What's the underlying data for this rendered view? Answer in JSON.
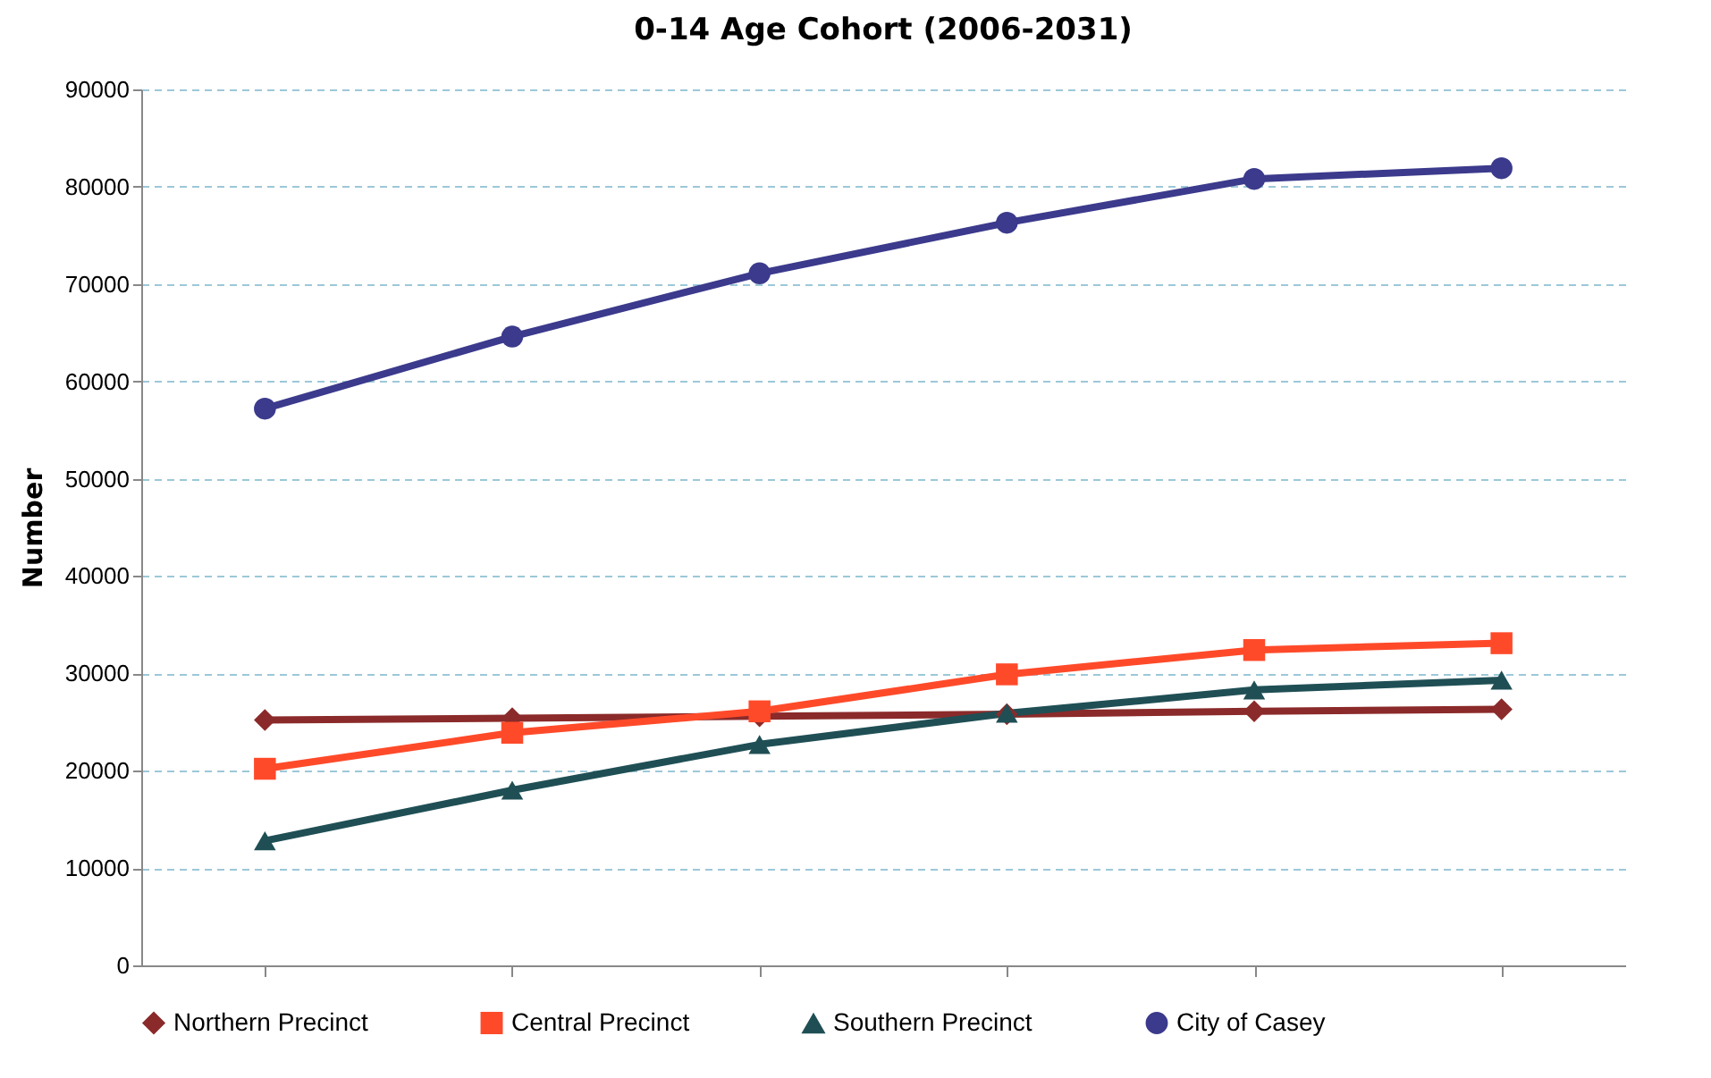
{
  "chart_data": {
    "type": "line",
    "title": "0-14 Age Cohort (2006-2031)",
    "ylabel": "Number",
    "categories": [
      null,
      null,
      null,
      null,
      null,
      null
    ],
    "ylim": [
      0,
      90000
    ],
    "yticks": [
      0,
      10000,
      20000,
      30000,
      40000,
      50000,
      60000,
      70000,
      80000,
      90000
    ],
    "grid": "y",
    "legend": "bottom",
    "line_style": "solid",
    "series": [
      {
        "name": "Northern Precinct",
        "color": "#8b2a2a",
        "marker": "diamond",
        "values": [
          25200,
          25400,
          25600,
          25800,
          26100,
          26300
        ]
      },
      {
        "name": "Central Precinct",
        "color": "#ff4a2a",
        "marker": "square",
        "values": [
          20200,
          23900,
          26100,
          29900,
          32400,
          33100
        ]
      },
      {
        "name": "Southern Precinct",
        "color": "#1f4f55",
        "marker": "triangle",
        "values": [
          12800,
          18000,
          22700,
          25900,
          28300,
          29300
        ]
      },
      {
        "name": "City of Casey",
        "color": "#3b3a8c",
        "marker": "circle",
        "values": [
          57200,
          64600,
          71100,
          76300,
          80800,
          81900
        ]
      }
    ]
  }
}
